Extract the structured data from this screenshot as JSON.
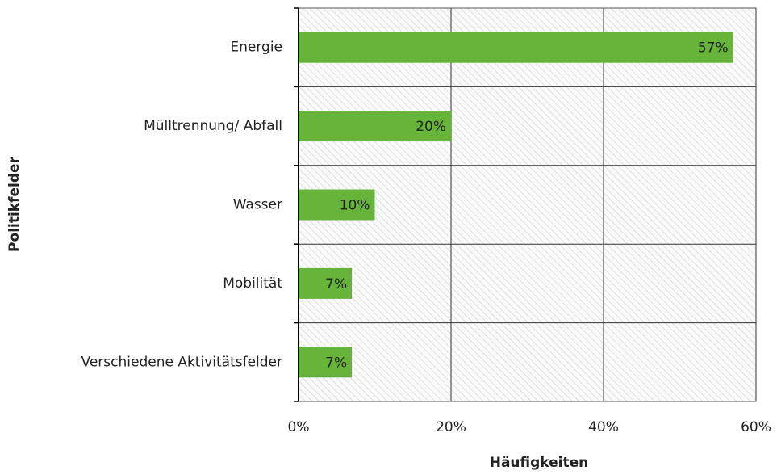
{
  "chart_data": {
    "type": "bar",
    "orientation": "horizontal",
    "x_label": "Häufigkeiten",
    "y_label": "Politikfelder",
    "categories": [
      "Energie",
      "Mülltrennung/ Abfall",
      "Wasser",
      "Mobilität",
      "Verschiedene Aktivitätsfelder"
    ],
    "values": [
      57,
      20,
      10,
      7,
      7
    ],
    "value_labels": [
      "57%",
      "20%",
      "10%",
      "7%",
      "7%"
    ],
    "color": "#66b43a",
    "xlim": [
      0,
      60
    ],
    "xticks": [
      {
        "value": 0,
        "label": "0%"
      },
      {
        "value": 20,
        "label": "20%"
      },
      {
        "value": 40,
        "label": "40%"
      },
      {
        "value": 60,
        "label": "60%"
      }
    ],
    "grid": true
  }
}
